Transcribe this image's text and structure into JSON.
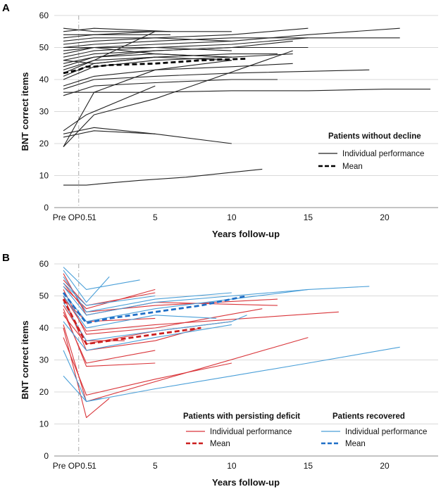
{
  "chart_data": [
    {
      "panel": "A",
      "type": "line",
      "ylabel": "BNT correct items",
      "xlabel": "Years follow-up",
      "ylim": [
        0,
        60
      ],
      "yticks": [
        "0",
        "10",
        "20",
        "30",
        "40",
        "50",
        "60"
      ],
      "xlim": [
        -1.6,
        23.5
      ],
      "xticks": [
        {
          "x": -0.8,
          "label": "Pre OP"
        },
        {
          "x": 0.5,
          "label": "0.5"
        },
        {
          "x": 1,
          "label": "1"
        },
        {
          "x": 5,
          "label": "5"
        },
        {
          "x": 10,
          "label": "10"
        },
        {
          "x": 15,
          "label": "15"
        },
        {
          "x": 20,
          "label": "20"
        }
      ],
      "grid": true,
      "operation_marker_x": 0,
      "legend": {
        "position": "right",
        "title": "Patients without decline",
        "entries": [
          {
            "label": "Individual performance",
            "style": "solid",
            "color": "#222222"
          },
          {
            "label": "Mean",
            "style": "dashed",
            "color": "#000000"
          }
        ]
      },
      "series": [
        {
          "group": "individual",
          "x": [
            -1,
            0.5,
            1.5,
            4,
            7,
            10,
            12
          ],
          "y": [
            7,
            7,
            7.5,
            8.5,
            9.5,
            11,
            12
          ]
        },
        {
          "group": "individual",
          "x": [
            -1,
            1,
            5
          ],
          "y": [
            22,
            24,
            23
          ]
        },
        {
          "group": "individual",
          "x": [
            -1,
            1,
            5,
            10
          ],
          "y": [
            23,
            25,
            23,
            20
          ]
        },
        {
          "group": "individual",
          "x": [
            -1,
            1,
            5,
            14
          ],
          "y": [
            19,
            29,
            34,
            49
          ]
        },
        {
          "group": "individual",
          "x": [
            -1,
            0.5,
            5
          ],
          "y": [
            24,
            29,
            38
          ]
        },
        {
          "group": "individual",
          "x": [
            -1,
            1,
            5,
            10,
            15,
            20,
            23
          ],
          "y": [
            36,
            36,
            36,
            36.5,
            36.5,
            37,
            37
          ]
        },
        {
          "group": "individual",
          "x": [
            -1,
            1,
            5,
            10,
            13
          ],
          "y": [
            35,
            38,
            39,
            40,
            40
          ]
        },
        {
          "group": "individual",
          "x": [
            -1,
            1,
            5,
            10,
            19
          ],
          "y": [
            37,
            40,
            41,
            42,
            43
          ]
        },
        {
          "group": "individual",
          "x": [
            -1,
            1,
            5,
            10,
            14
          ],
          "y": [
            38,
            41,
            43,
            44,
            45
          ]
        },
        {
          "group": "individual",
          "x": [
            -1,
            1,
            5,
            10
          ],
          "y": [
            19,
            36,
            43,
            46
          ]
        },
        {
          "group": "individual",
          "x": [
            -1,
            1,
            5,
            10,
            14
          ],
          "y": [
            40,
            44,
            46,
            47,
            48
          ]
        },
        {
          "group": "individual",
          "x": [
            -1,
            1,
            5,
            10,
            13
          ],
          "y": [
            41,
            45,
            47,
            48,
            48
          ]
        },
        {
          "group": "individual",
          "x": [
            -1,
            1,
            5
          ],
          "y": [
            42,
            46,
            55
          ]
        },
        {
          "group": "individual",
          "x": [
            -1,
            1,
            5,
            10
          ],
          "y": [
            43,
            46,
            47,
            46
          ]
        },
        {
          "group": "individual",
          "x": [
            -1,
            1,
            5,
            10
          ],
          "y": [
            44,
            47,
            48,
            47
          ]
        },
        {
          "group": "individual",
          "x": [
            -1,
            1,
            5,
            10,
            14
          ],
          "y": [
            45,
            47,
            49,
            50,
            52
          ]
        },
        {
          "group": "individual",
          "x": [
            -1,
            1,
            5,
            10,
            15
          ],
          "y": [
            46,
            48,
            49,
            50,
            50
          ]
        },
        {
          "group": "individual",
          "x": [
            -1,
            1,
            5,
            10,
            15,
            21
          ],
          "y": [
            47,
            49,
            50,
            51,
            53,
            53
          ]
        },
        {
          "group": "individual",
          "x": [
            -1,
            1,
            5,
            10,
            15,
            21
          ],
          "y": [
            48,
            50,
            51,
            52,
            54,
            56
          ]
        },
        {
          "group": "individual",
          "x": [
            -1,
            1,
            5,
            10
          ],
          "y": [
            49,
            50,
            50,
            49
          ]
        },
        {
          "group": "individual",
          "x": [
            -1,
            1,
            5,
            10,
            15
          ],
          "y": [
            50,
            51,
            52,
            53,
            53
          ]
        },
        {
          "group": "individual",
          "x": [
            -1,
            1,
            5,
            10,
            15
          ],
          "y": [
            51,
            52,
            53,
            54,
            56
          ]
        },
        {
          "group": "individual",
          "x": [
            -1,
            1,
            5,
            10
          ],
          "y": [
            52,
            53,
            53,
            52
          ]
        },
        {
          "group": "individual",
          "x": [
            -1,
            1,
            5,
            10
          ],
          "y": [
            53,
            54,
            55,
            55
          ]
        },
        {
          "group": "individual",
          "x": [
            -1,
            1,
            6
          ],
          "y": [
            54,
            54,
            54
          ]
        },
        {
          "group": "individual",
          "x": [
            -1,
            1,
            6
          ],
          "y": [
            55,
            56,
            55
          ]
        },
        {
          "group": "individual",
          "x": [
            -1,
            1,
            5
          ],
          "y": [
            56,
            55,
            55
          ]
        },
        {
          "group": "individual",
          "x": [
            -1,
            1,
            5,
            10
          ],
          "y": [
            50,
            50,
            48,
            47
          ]
        },
        {
          "group": "individual",
          "x": [
            -1,
            1,
            5
          ],
          "y": [
            46,
            45,
            47
          ]
        },
        {
          "group": "mean",
          "name": "Mean",
          "x": [
            -1,
            0,
            0.5,
            1,
            2,
            5,
            8,
            11
          ],
          "y": [
            42,
            43,
            44,
            44,
            44.5,
            45,
            46,
            46.5
          ]
        }
      ]
    },
    {
      "panel": "B",
      "type": "line",
      "ylabel": "BNT correct items",
      "xlabel": "Years follow-up",
      "ylim": [
        0,
        60
      ],
      "yticks": [
        "0",
        "10",
        "20",
        "30",
        "40",
        "50",
        "60"
      ],
      "xlim": [
        -1.6,
        23.5
      ],
      "xticks": [
        {
          "x": -0.8,
          "label": "Pre OP"
        },
        {
          "x": 0.5,
          "label": "0.5"
        },
        {
          "x": 1,
          "label": "1"
        },
        {
          "x": 5,
          "label": "5"
        },
        {
          "x": 10,
          "label": "10"
        },
        {
          "x": 15,
          "label": "15"
        },
        {
          "x": 20,
          "label": "20"
        }
      ],
      "grid": true,
      "operation_marker_x": 0,
      "legends": [
        {
          "position": "bottom-center",
          "title": "Patients with persisting deficit",
          "entries": [
            {
              "label": "Individual performance",
              "style": "solid",
              "color": "#d9353a"
            },
            {
              "label": "Mean",
              "style": "dashed",
              "color": "#cc1f1f"
            }
          ]
        },
        {
          "position": "bottom-right",
          "title": "Patients recovered",
          "entries": [
            {
              "label": "Individual performance",
              "style": "solid",
              "color": "#4a9fd8"
            },
            {
              "label": "Mean",
              "style": "dashed",
              "color": "#1f6fc7"
            }
          ]
        }
      ],
      "series": [
        {
          "group": "deficit",
          "x": [
            -1,
            0.5,
            2
          ],
          "y": [
            40,
            12,
            18
          ]
        },
        {
          "group": "deficit",
          "x": [
            -1,
            0.5,
            5,
            10
          ],
          "y": [
            37,
            19,
            24,
            29
          ]
        },
        {
          "group": "deficit",
          "x": [
            -1,
            0.5,
            15
          ],
          "y": [
            41,
            17,
            37
          ]
        },
        {
          "group": "deficit",
          "x": [
            -1,
            0.5,
            5
          ],
          "y": [
            46,
            28,
            29
          ]
        },
        {
          "group": "deficit",
          "x": [
            -1,
            0.5,
            5
          ],
          "y": [
            45,
            29,
            33
          ]
        },
        {
          "group": "deficit",
          "x": [
            -1,
            0.5,
            5,
            8
          ],
          "y": [
            50,
            33,
            36,
            40
          ]
        },
        {
          "group": "deficit",
          "x": [
            -1,
            0.5,
            5,
            10
          ],
          "y": [
            44,
            35,
            39,
            42
          ]
        },
        {
          "group": "deficit",
          "x": [
            -1,
            0.5,
            5,
            12
          ],
          "y": [
            52,
            38,
            40,
            46
          ]
        },
        {
          "group": "deficit",
          "x": [
            -1,
            0.5,
            5,
            17
          ],
          "y": [
            50,
            39,
            41,
            45
          ]
        },
        {
          "group": "deficit",
          "x": [
            -1,
            0.5,
            5
          ],
          "y": [
            49,
            42,
            43
          ]
        },
        {
          "group": "deficit",
          "x": [
            -1,
            0.5,
            5,
            13
          ],
          "y": [
            54,
            45,
            47,
            49
          ]
        },
        {
          "group": "deficit",
          "x": [
            -1,
            0.5,
            5,
            13
          ],
          "y": [
            57,
            44,
            48,
            47
          ]
        },
        {
          "group": "deficit",
          "x": [
            -1,
            0.5,
            5
          ],
          "y": [
            53,
            46,
            52
          ]
        },
        {
          "group": "deficit",
          "x": [
            -1,
            0.5,
            5
          ],
          "y": [
            55,
            47,
            51
          ]
        },
        {
          "group": "deficit",
          "x": [
            -1,
            0.5,
            3
          ],
          "y": [
            47,
            36,
            36
          ]
        },
        {
          "group": "recovered",
          "x": [
            -1,
            0.5,
            1.5
          ],
          "y": [
            25,
            17,
            18
          ]
        },
        {
          "group": "recovered",
          "x": [
            -1,
            0.5,
            5,
            10,
            15,
            21
          ],
          "y": [
            33,
            17,
            21,
            25,
            29,
            34
          ]
        },
        {
          "group": "recovered",
          "x": [
            -1,
            0.5,
            5,
            10
          ],
          "y": [
            42,
            33,
            37,
            41
          ]
        },
        {
          "group": "recovered",
          "x": [
            -1,
            0.5,
            5,
            10,
            11
          ],
          "y": [
            48,
            36,
            39,
            42,
            44
          ]
        },
        {
          "group": "recovered",
          "x": [
            -1,
            0.5,
            5,
            9
          ],
          "y": [
            50,
            40,
            44,
            43
          ]
        },
        {
          "group": "recovered",
          "x": [
            -1,
            0.5,
            5,
            10,
            15
          ],
          "y": [
            51,
            42,
            46,
            49,
            52
          ]
        },
        {
          "group": "recovered",
          "x": [
            -1,
            0.5,
            5,
            10,
            15,
            19
          ],
          "y": [
            53,
            44,
            48,
            50,
            52,
            53
          ]
        },
        {
          "group": "recovered",
          "x": [
            -1,
            0.5,
            5,
            10
          ],
          "y": [
            56,
            45,
            49,
            51
          ]
        },
        {
          "group": "recovered",
          "x": [
            -1,
            0.5,
            4
          ],
          "y": [
            59,
            52,
            55
          ]
        },
        {
          "group": "recovered",
          "x": [
            -1,
            0.5,
            2
          ],
          "y": [
            58,
            48,
            56
          ]
        },
        {
          "group": "recovered",
          "x": [
            -1,
            0.5,
            5
          ],
          "y": [
            54,
            47,
            50
          ]
        },
        {
          "group": "deficit-mean",
          "name": "Mean",
          "x": [
            -1,
            0.5,
            2,
            5,
            8
          ],
          "y": [
            49,
            35,
            36,
            38,
            40
          ]
        },
        {
          "group": "recovered-mean",
          "name": "Mean",
          "x": [
            -1,
            0.5,
            2,
            5,
            8,
            11
          ],
          "y": [
            51,
            41.5,
            43,
            45,
            47,
            50
          ]
        }
      ]
    }
  ]
}
